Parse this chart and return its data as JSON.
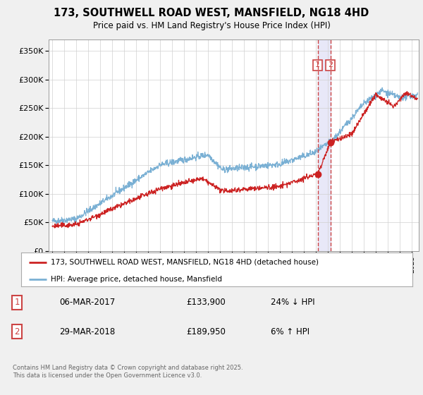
{
  "title": "173, SOUTHWELL ROAD WEST, MANSFIELD, NG18 4HD",
  "subtitle": "Price paid vs. HM Land Registry's House Price Index (HPI)",
  "ylim": [
    0,
    370000
  ],
  "yticks": [
    0,
    50000,
    100000,
    150000,
    200000,
    250000,
    300000,
    350000
  ],
  "legend1": "173, SOUTHWELL ROAD WEST, MANSFIELD, NG18 4HD (detached house)",
  "legend2": "HPI: Average price, detached house, Mansfield",
  "transaction1_label": "1",
  "transaction1_date": "06-MAR-2017",
  "transaction1_price": "£133,900",
  "transaction1_hpi": "24% ↓ HPI",
  "transaction2_label": "2",
  "transaction2_date": "29-MAR-2018",
  "transaction2_price": "£189,950",
  "transaction2_hpi": "6% ↑ HPI",
  "footer": "Contains HM Land Registry data © Crown copyright and database right 2025.\nThis data is licensed under the Open Government Licence v3.0.",
  "color_red": "#cc2222",
  "color_blue": "#7ab0d4",
  "marker1_date": 2017.17,
  "marker1_price": 133900,
  "marker2_date": 2018.23,
  "marker2_price": 189950,
  "background_color": "#f0f0f0",
  "plot_background": "#ffffff",
  "band_color": "#e8e8f8",
  "dashed_color": "#cc4444"
}
